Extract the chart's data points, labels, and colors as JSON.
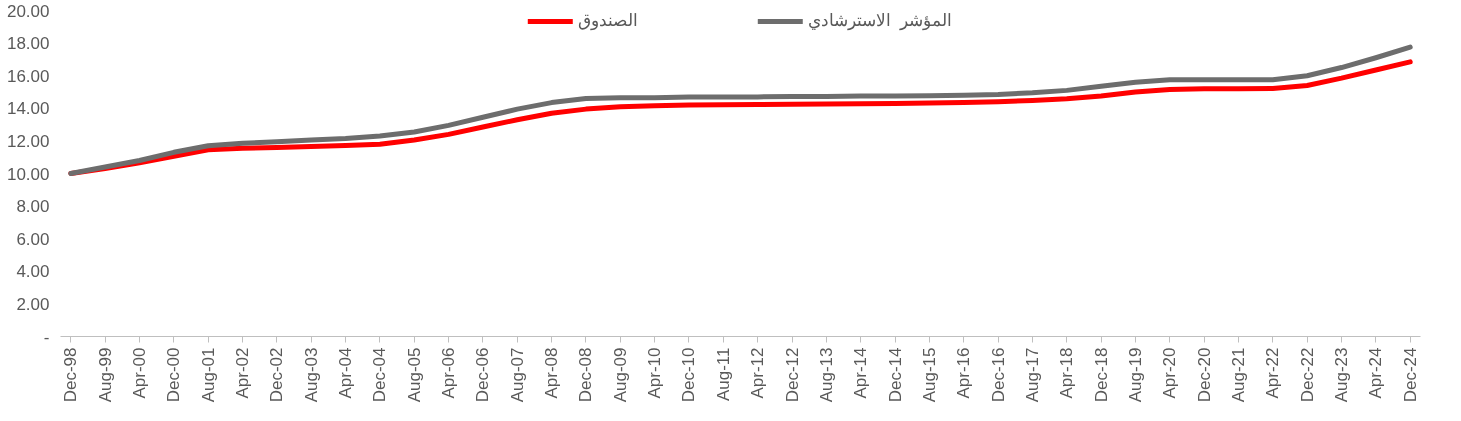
{
  "chart_data": {
    "type": "line",
    "categories": [
      "Dec-98",
      "Aug-99",
      "Apr-00",
      "Dec-00",
      "Aug-01",
      "Apr-02",
      "Dec-02",
      "Aug-03",
      "Apr-04",
      "Dec-04",
      "Aug-05",
      "Apr-06",
      "Dec-06",
      "Aug-07",
      "Apr-08",
      "Dec-08",
      "Aug-09",
      "Apr-10",
      "Dec-10",
      "Aug-11",
      "Apr-12",
      "Dec-12",
      "Aug-13",
      "Apr-14",
      "Dec-14",
      "Aug-15",
      "Apr-16",
      "Dec-16",
      "Aug-17",
      "Apr-18",
      "Dec-18",
      "Aug-19",
      "Apr-20",
      "Dec-20",
      "Aug-21",
      "Apr-22",
      "Dec-22",
      "Aug-23",
      "Apr-24",
      "Dec-24"
    ],
    "series": [
      {
        "name": "الصندوق",
        "color": "#ff0000",
        "values": [
          10.0,
          10.3,
          10.65,
          11.05,
          11.45,
          11.55,
          11.6,
          11.65,
          11.72,
          11.8,
          12.05,
          12.4,
          12.85,
          13.3,
          13.7,
          13.95,
          14.1,
          14.15,
          14.2,
          14.22,
          14.23,
          14.25,
          14.27,
          14.28,
          14.3,
          14.32,
          14.35,
          14.4,
          14.48,
          14.58,
          14.75,
          15.0,
          15.15,
          15.2,
          15.2,
          15.22,
          15.4,
          15.85,
          16.35,
          16.85
        ]
      },
      {
        "name": "المؤشر  الاسترشادي",
        "color": "#6d6d6d",
        "values": [
          10.0,
          10.4,
          10.8,
          11.3,
          11.7,
          11.85,
          11.95,
          12.05,
          12.15,
          12.3,
          12.55,
          12.95,
          13.45,
          13.95,
          14.35,
          14.6,
          14.65,
          14.65,
          14.7,
          14.7,
          14.7,
          14.72,
          14.73,
          14.75,
          14.75,
          14.77,
          14.8,
          14.85,
          14.95,
          15.1,
          15.35,
          15.6,
          15.75,
          15.75,
          15.75,
          15.75,
          16.0,
          16.5,
          17.1,
          17.75
        ]
      }
    ],
    "ylim": [
      0,
      20
    ],
    "yticks": [
      {
        "value": 0,
        "label": "-"
      },
      {
        "value": 2,
        "label": "2.00"
      },
      {
        "value": 4,
        "label": "4.00"
      },
      {
        "value": 6,
        "label": "6.00"
      },
      {
        "value": 8,
        "label": "8.00"
      },
      {
        "value": 10,
        "label": "10.00"
      },
      {
        "value": 12,
        "label": "12.00"
      },
      {
        "value": 14,
        "label": "14.00"
      },
      {
        "value": 16,
        "label": "16.00"
      },
      {
        "value": 18,
        "label": "18.00"
      },
      {
        "value": 20,
        "label": "20.00"
      }
    ],
    "grid": false,
    "legend": "top",
    "marker": "none",
    "line_style": "solid"
  }
}
